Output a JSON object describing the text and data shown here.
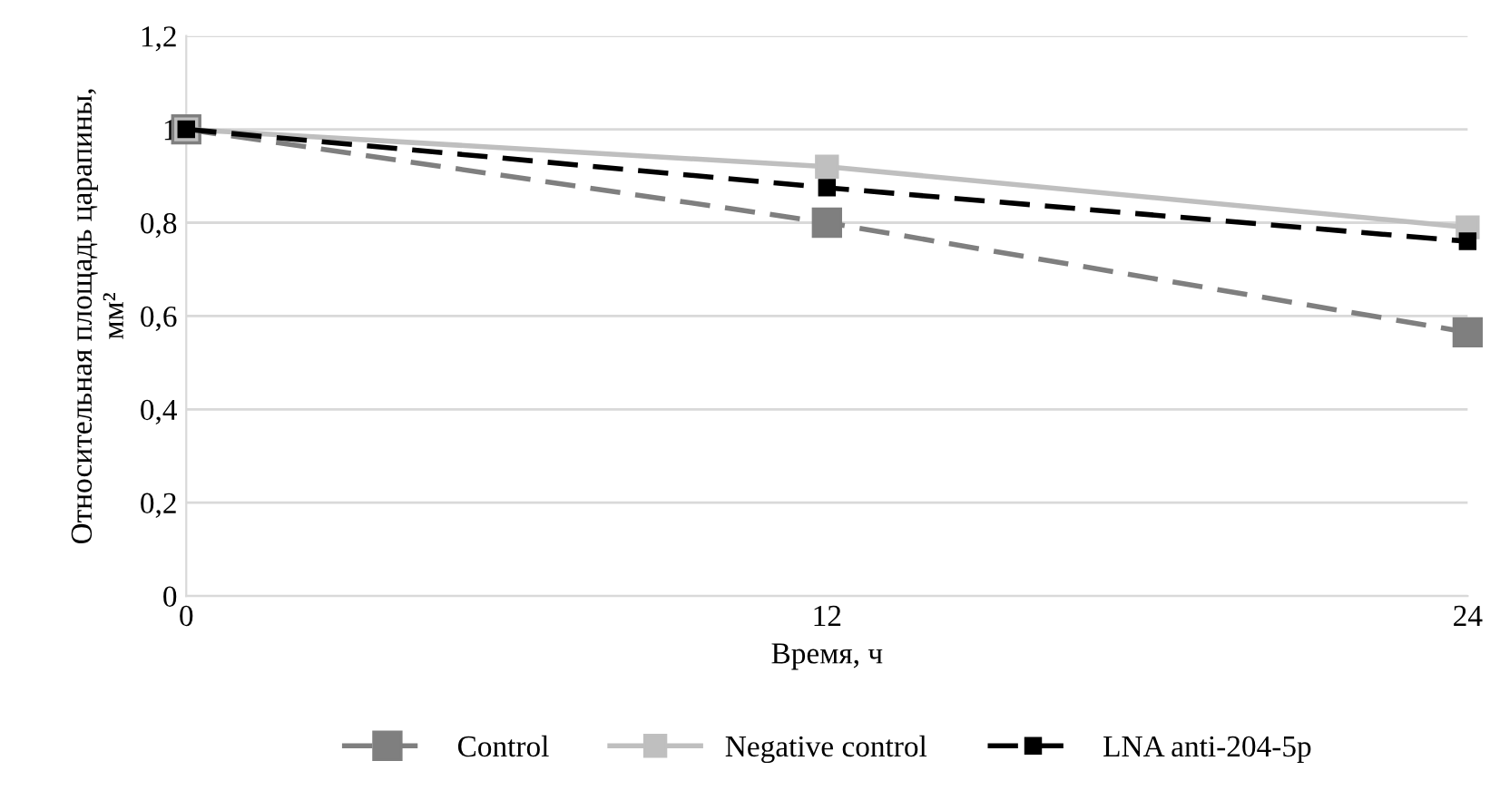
{
  "chart_data": {
    "type": "line",
    "xlabel": "Время, ч",
    "ylabel": "Относительная площадь царапины,\nмм²",
    "x": [
      0,
      12,
      24
    ],
    "xlim": [
      0,
      24
    ],
    "xticks": [
      0,
      12,
      24
    ],
    "ylim": [
      0,
      1.2
    ],
    "yticks": [
      {
        "value": 0,
        "label": "0"
      },
      {
        "value": 0.2,
        "label": "0,2"
      },
      {
        "value": 0.4,
        "label": "0,4"
      },
      {
        "value": 0.6,
        "label": "0,6"
      },
      {
        "value": 0.8,
        "label": "0,8"
      },
      {
        "value": 1,
        "label": "1"
      },
      {
        "value": 1.2,
        "label": "1,2"
      }
    ],
    "grid": "y",
    "legend": "bottom",
    "marker": "square",
    "series": [
      {
        "name": "Control",
        "color": "#7f7f7f",
        "line_style": "dashed",
        "values": [
          1,
          0.8,
          0.565
        ]
      },
      {
        "name": "Negative control",
        "color": "#bfbfbf",
        "line_style": "solid",
        "values": [
          1,
          0.92,
          0.79
        ]
      },
      {
        "name": "LNA anti-204-5p",
        "color": "#000000",
        "line_style": "dashed",
        "values": [
          1,
          0.875,
          0.76
        ]
      }
    ]
  }
}
